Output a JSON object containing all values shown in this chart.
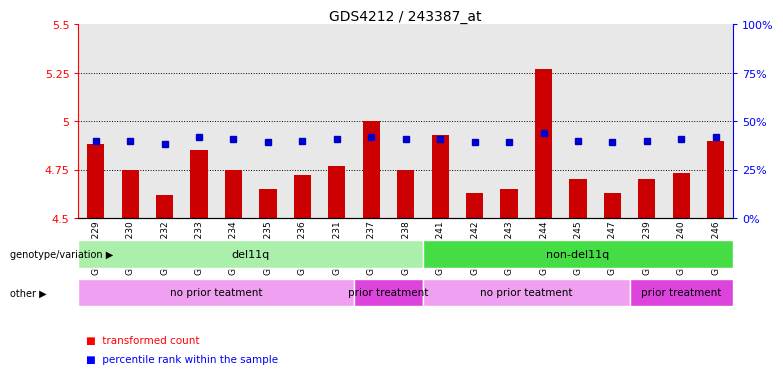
{
  "title": "GDS4212 / 243387_at",
  "samples": [
    "GSM652229",
    "GSM652230",
    "GSM652232",
    "GSM652233",
    "GSM652234",
    "GSM652235",
    "GSM652236",
    "GSM652231",
    "GSM652237",
    "GSM652238",
    "GSM652241",
    "GSM652242",
    "GSM652243",
    "GSM652244",
    "GSM652245",
    "GSM652247",
    "GSM652239",
    "GSM652240",
    "GSM652246"
  ],
  "red_values": [
    4.88,
    4.75,
    4.62,
    4.85,
    4.75,
    4.65,
    4.72,
    4.77,
    5.0,
    4.75,
    4.93,
    4.63,
    4.65,
    5.27,
    4.7,
    4.63,
    4.7,
    4.73,
    4.9
  ],
  "blue_values": [
    40,
    40,
    38,
    42,
    41,
    39,
    40,
    41,
    42,
    41,
    41,
    39,
    39,
    44,
    40,
    39,
    40,
    41,
    42
  ],
  "ylim_left": [
    4.5,
    5.5
  ],
  "ylim_right": [
    0,
    100
  ],
  "yticks_left": [
    4.5,
    4.75,
    5.0,
    5.25,
    5.5
  ],
  "yticks_right": [
    0,
    25,
    50,
    75,
    100
  ],
  "ytick_labels_left": [
    "4.5",
    "4.75",
    "5",
    "5.25",
    "5.5"
  ],
  "ytick_labels_right": [
    "0%",
    "25%",
    "50%",
    "75%",
    "100%"
  ],
  "hlines": [
    4.75,
    5.0,
    5.25
  ],
  "bar_color": "#cc0000",
  "dot_color": "#0000cc",
  "bar_bottom": 4.5,
  "genotype_groups": [
    {
      "label": "del11q",
      "start": 0,
      "end": 9,
      "color": "#aaf0aa"
    },
    {
      "label": "non-del11q",
      "start": 10,
      "end": 18,
      "color": "#44dd44"
    }
  ],
  "other_groups": [
    {
      "label": "no prior teatment",
      "start": 0,
      "end": 7,
      "color": "#f0a0f0"
    },
    {
      "label": "prior treatment",
      "start": 8,
      "end": 9,
      "color": "#dd44dd"
    },
    {
      "label": "no prior teatment",
      "start": 10,
      "end": 15,
      "color": "#f0a0f0"
    },
    {
      "label": "prior treatment",
      "start": 16,
      "end": 18,
      "color": "#dd44dd"
    }
  ],
  "legend_label_red": "transformed count",
  "legend_label_blue": "percentile rank within the sample",
  "genotype_label": "genotype/variation",
  "other_label": "other",
  "bar_width": 0.5,
  "bg_color": "#e8e8e8"
}
